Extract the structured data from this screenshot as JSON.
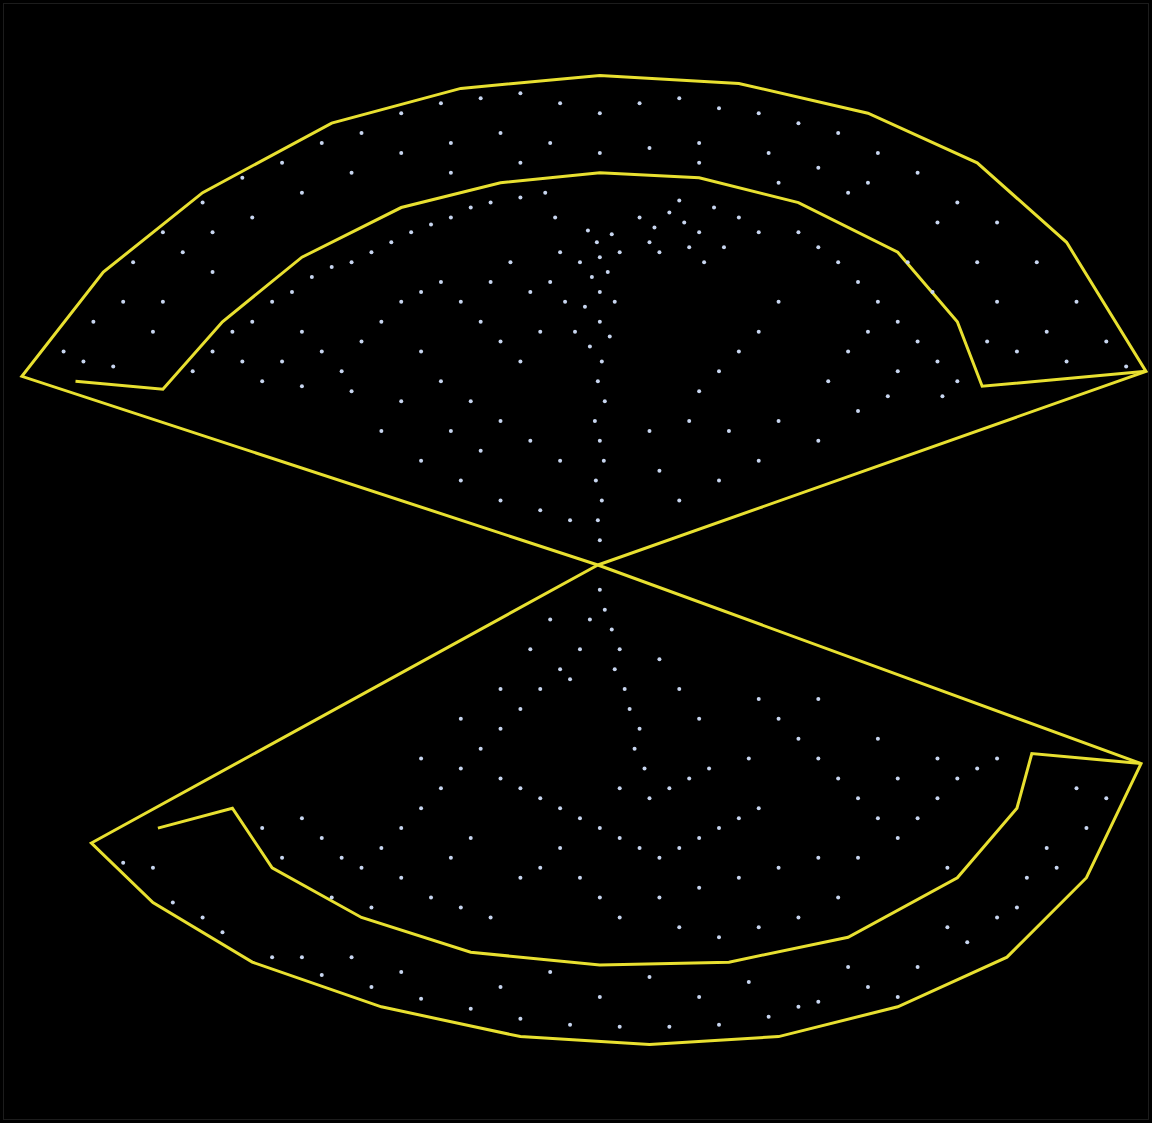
{
  "chart_data": {
    "type": "scatter",
    "x": [
      600,
      598,
      602,
      596,
      604,
      600,
      595,
      605,
      598,
      602,
      590,
      610,
      600,
      585,
      615,
      600,
      592,
      608,
      600,
      620,
      580,
      597,
      612,
      588,
      640,
      655,
      670,
      685,
      700,
      715,
      690,
      660,
      705,
      725,
      740,
      760,
      680,
      650,
      800,
      820,
      840,
      860,
      880,
      900,
      920,
      870,
      850,
      830,
      900,
      940,
      960,
      910,
      935,
      780,
      760,
      740,
      720,
      700,
      780,
      820,
      760,
      720,
      680,
      660,
      650,
      690,
      730,
      860,
      890,
      945,
      190,
      210,
      230,
      250,
      270,
      290,
      310,
      330,
      350,
      370,
      390,
      410,
      430,
      450,
      470,
      490,
      520,
      545,
      300,
      320,
      340,
      360,
      380,
      400,
      420,
      440,
      460,
      480,
      500,
      520,
      540,
      530,
      510,
      490,
      420,
      440,
      470,
      500,
      530,
      560,
      480,
      450,
      400,
      350,
      300,
      260,
      380,
      420,
      460,
      500,
      540,
      570,
      240,
      280,
      555,
      560,
      550,
      565,
      575,
      60,
      90,
      120,
      80,
      130,
      160,
      200,
      180,
      240,
      280,
      320,
      360,
      400,
      440,
      480,
      520,
      560,
      600,
      640,
      680,
      720,
      760,
      800,
      840,
      880,
      920,
      960,
      1000,
      1040,
      1080,
      1110,
      1000,
      1050,
      1020,
      980,
      940,
      870,
      820,
      770,
      700,
      650,
      600,
      550,
      500,
      450,
      400,
      350,
      300,
      250,
      210,
      150,
      110,
      1070,
      990,
      1130,
      700,
      520,
      450,
      850,
      780,
      210,
      160,
      600,
      605,
      612,
      620,
      615,
      625,
      630,
      640,
      635,
      645,
      590,
      580,
      570,
      500,
      520,
      540,
      560,
      580,
      600,
      620,
      640,
      660,
      680,
      700,
      720,
      740,
      760,
      650,
      670,
      690,
      710,
      620,
      560,
      540,
      520,
      580,
      600,
      620,
      660,
      700,
      740,
      300,
      320,
      340,
      360,
      380,
      400,
      420,
      440,
      460,
      480,
      500,
      520,
      540,
      560,
      400,
      430,
      460,
      490,
      450,
      470,
      260,
      280,
      330,
      370,
      420,
      460,
      500,
      530,
      550,
      760,
      780,
      800,
      820,
      840,
      860,
      880,
      900,
      920,
      940,
      960,
      980,
      1000,
      860,
      840,
      800,
      760,
      720,
      680,
      820,
      780,
      750,
      700,
      680,
      660,
      900,
      940,
      880,
      820,
      950,
      120,
      170,
      220,
      270,
      320,
      370,
      420,
      470,
      520,
      570,
      620,
      670,
      720,
      770,
      820,
      870,
      920,
      970,
      1020,
      1060,
      1090,
      1110,
      1080,
      1050,
      1000,
      900,
      800,
      700,
      600,
      500,
      400,
      300,
      200,
      150,
      350,
      550,
      650,
      750,
      850,
      950,
      1030
    ],
    "values": [
      540,
      520,
      500,
      480,
      460,
      440,
      420,
      400,
      380,
      360,
      345,
      335,
      320,
      305,
      300,
      290,
      275,
      270,
      255,
      250,
      260,
      240,
      232,
      228,
      215,
      225,
      210,
      220,
      230,
      205,
      245,
      250,
      260,
      245,
      215,
      230,
      198,
      240,
      230,
      245,
      260,
      280,
      300,
      320,
      340,
      330,
      350,
      380,
      370,
      360,
      380,
      260,
      290,
      300,
      330,
      350,
      370,
      390,
      420,
      440,
      460,
      480,
      500,
      470,
      430,
      420,
      430,
      410,
      395,
      395,
      370,
      350,
      330,
      320,
      300,
      290,
      275,
      265,
      260,
      250,
      240,
      230,
      222,
      215,
      205,
      200,
      195,
      190,
      330,
      350,
      370,
      340,
      320,
      300,
      290,
      280,
      300,
      320,
      340,
      360,
      330,
      290,
      260,
      280,
      350,
      380,
      400,
      420,
      440,
      460,
      450,
      430,
      400,
      390,
      385,
      380,
      430,
      460,
      480,
      500,
      510,
      520,
      360,
      360,
      215,
      250,
      280,
      300,
      330,
      350,
      320,
      300,
      360,
      260,
      230,
      200,
      250,
      175,
      160,
      140,
      130,
      110,
      100,
      95,
      90,
      100,
      110,
      100,
      95,
      105,
      110,
      120,
      130,
      150,
      170,
      200,
      220,
      260,
      300,
      340,
      300,
      330,
      350,
      260,
      220,
      180,
      165,
      150,
      140,
      145,
      150,
      140,
      130,
      140,
      150,
      170,
      190,
      215,
      270,
      330,
      365,
      360,
      340,
      365,
      160,
      160,
      170,
      190,
      180,
      230,
      300,
      590,
      610,
      630,
      650,
      670,
      690,
      710,
      730,
      750,
      770,
      620,
      650,
      680,
      780,
      790,
      800,
      810,
      820,
      830,
      840,
      850,
      860,
      850,
      840,
      830,
      820,
      810,
      800,
      790,
      780,
      770,
      790,
      850,
      870,
      880,
      880,
      900,
      920,
      900,
      890,
      880,
      820,
      840,
      860,
      870,
      850,
      830,
      810,
      790,
      770,
      750,
      730,
      710,
      690,
      670,
      880,
      900,
      910,
      920,
      860,
      840,
      830,
      860,
      900,
      910,
      760,
      720,
      690,
      650,
      620,
      700,
      720,
      740,
      760,
      780,
      800,
      820,
      840,
      820,
      800,
      780,
      770,
      760,
      860,
      900,
      920,
      930,
      940,
      930,
      860,
      870,
      760,
      720,
      690,
      660,
      780,
      760,
      740,
      700,
      870,
      865,
      905,
      935,
      960,
      978,
      990,
      1002,
      1012,
      1022,
      1028,
      1030,
      1030,
      1028,
      1020,
      1005,
      990,
      970,
      945,
      910,
      870,
      830,
      800,
      790,
      850,
      920,
      1000,
      1010,
      1000,
      1000,
      990,
      975,
      960,
      920,
      870,
      960,
      975,
      980,
      985,
      970,
      930,
      880
    ],
    "color": "#c8d6f0",
    "marker": "circle",
    "xlim": [
      0,
      1152
    ],
    "ylim": [
      1123,
      0
    ],
    "xticks": [],
    "yticks": [],
    "tick_labels": false,
    "grid": false,
    "outlines": [
      {
        "color": "#e8e030",
        "x": [
          598,
          18,
          100,
          200,
          330,
          460,
          600,
          740,
          870,
          980,
          1070,
          1150,
          598
        ],
        "y": [
          565,
          375,
          270,
          190,
          120,
          85,
          72,
          80,
          110,
          160,
          240,
          370,
          565
        ]
      },
      {
        "color": "#e8e030",
        "x": [
          72,
          160,
          220,
          300,
          400,
          500,
          600,
          700,
          800,
          900,
          960,
          985,
          1150
        ],
        "y": [
          380,
          388,
          320,
          255,
          205,
          180,
          170,
          175,
          200,
          250,
          320,
          385,
          370
        ]
      },
      {
        "color": "#e8e030",
        "x": [
          598,
          88,
          150,
          250,
          380,
          520,
          650,
          780,
          900,
          1010,
          1090,
          1145,
          598
        ],
        "y": [
          565,
          845,
          905,
          965,
          1010,
          1040,
          1048,
          1040,
          1010,
          960,
          880,
          765,
          565
        ]
      },
      {
        "color": "#e8e030",
        "x": [
          155,
          230,
          270,
          360,
          470,
          600,
          730,
          850,
          960,
          1020,
          1035,
          1145
        ],
        "y": [
          830,
          810,
          870,
          920,
          955,
          968,
          965,
          940,
          880,
          810,
          755,
          765
        ]
      }
    ]
  }
}
